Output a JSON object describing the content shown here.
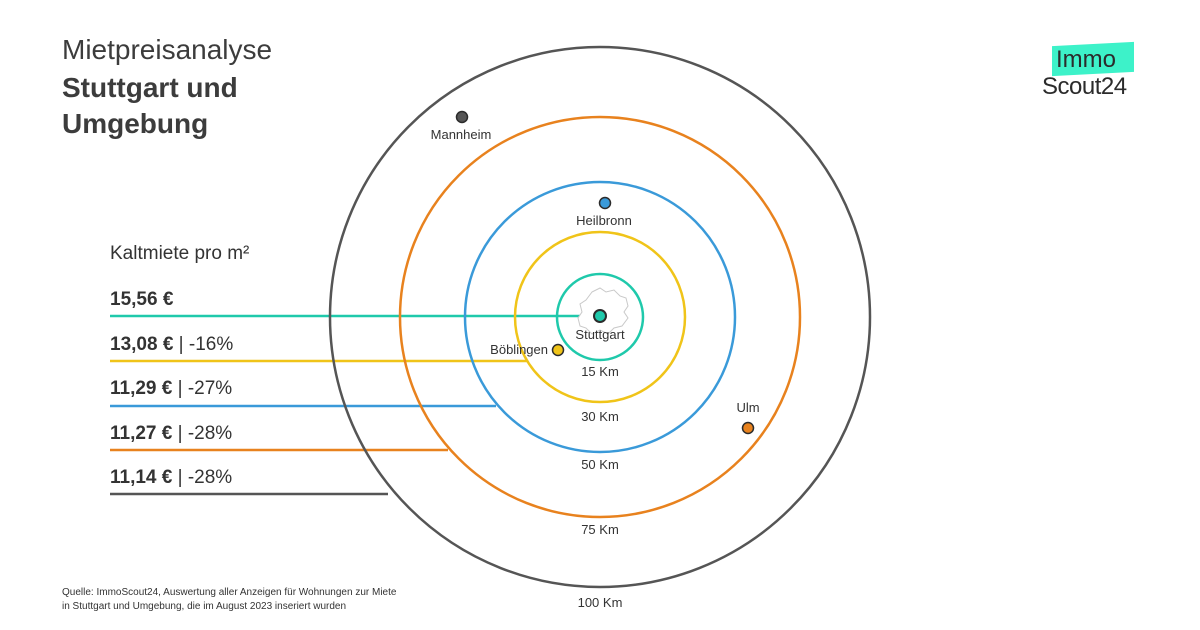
{
  "title": {
    "line1": "Mietpreisanalyse",
    "line2a": "Stuttgart und",
    "line2b": "Umgebung"
  },
  "logo": {
    "top": "Immo",
    "bottom": "Scout24",
    "accent_color": "#3df2c9"
  },
  "legend": {
    "heading": "Kaltmiete pro m²",
    "rows": [
      {
        "value": "15,56 €",
        "change": "",
        "color": "#1fc9ab"
      },
      {
        "value": "13,08 €",
        "change": " | -16%",
        "color": "#f0c419"
      },
      {
        "value": "11,29 €",
        "change": " | -27%",
        "color": "#3a9ad9"
      },
      {
        "value": "11,27 €",
        "change": " | -28%",
        "color": "#e8821e"
      },
      {
        "value": "11,14 €",
        "change": " | -28%",
        "color": "#555555"
      }
    ]
  },
  "rings": [
    {
      "label": "15 Km",
      "color": "#1fc9ab"
    },
    {
      "label": "30 Km",
      "color": "#f0c419"
    },
    {
      "label": "50 Km",
      "color": "#3a9ad9"
    },
    {
      "label": "75 Km",
      "color": "#e8821e"
    },
    {
      "label": "100 Km",
      "color": "#555555"
    }
  ],
  "cities": [
    {
      "name": "Stuttgart",
      "color": "#1fc9ab"
    },
    {
      "name": "Böblingen",
      "color": "#f0c419"
    },
    {
      "name": "Heilbronn",
      "color": "#3a9ad9"
    },
    {
      "name": "Ulm",
      "color": "#e8821e"
    },
    {
      "name": "Mannheim",
      "color": "#555555"
    }
  ],
  "source": {
    "line1": "Quelle: ImmoScout24, Auswertung aller Anzeigen für Wohnungen zur Miete",
    "line2": "in Stuttgart und Umgebung, die im August 2023 inseriert wurden"
  }
}
